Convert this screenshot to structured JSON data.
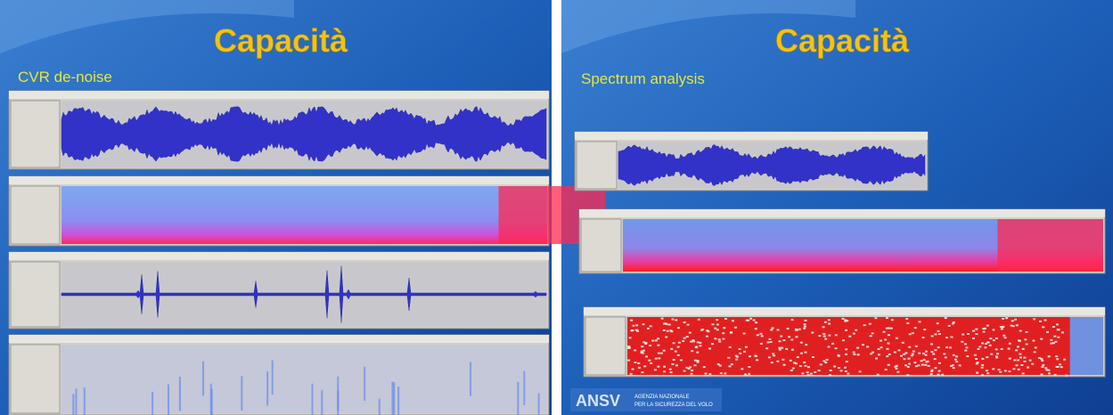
{
  "slides": [
    {
      "title": "Capacità",
      "subtitle": "CVR de-noise"
    },
    {
      "title": "Capacità",
      "subtitle": "Spectrum analysis",
      "logo": {
        "mark": "ANSV",
        "text_line1": "AGENZIA NAZIONALE",
        "text_line2": "PER LA SICUREZZA DEL VOLO"
      }
    }
  ]
}
